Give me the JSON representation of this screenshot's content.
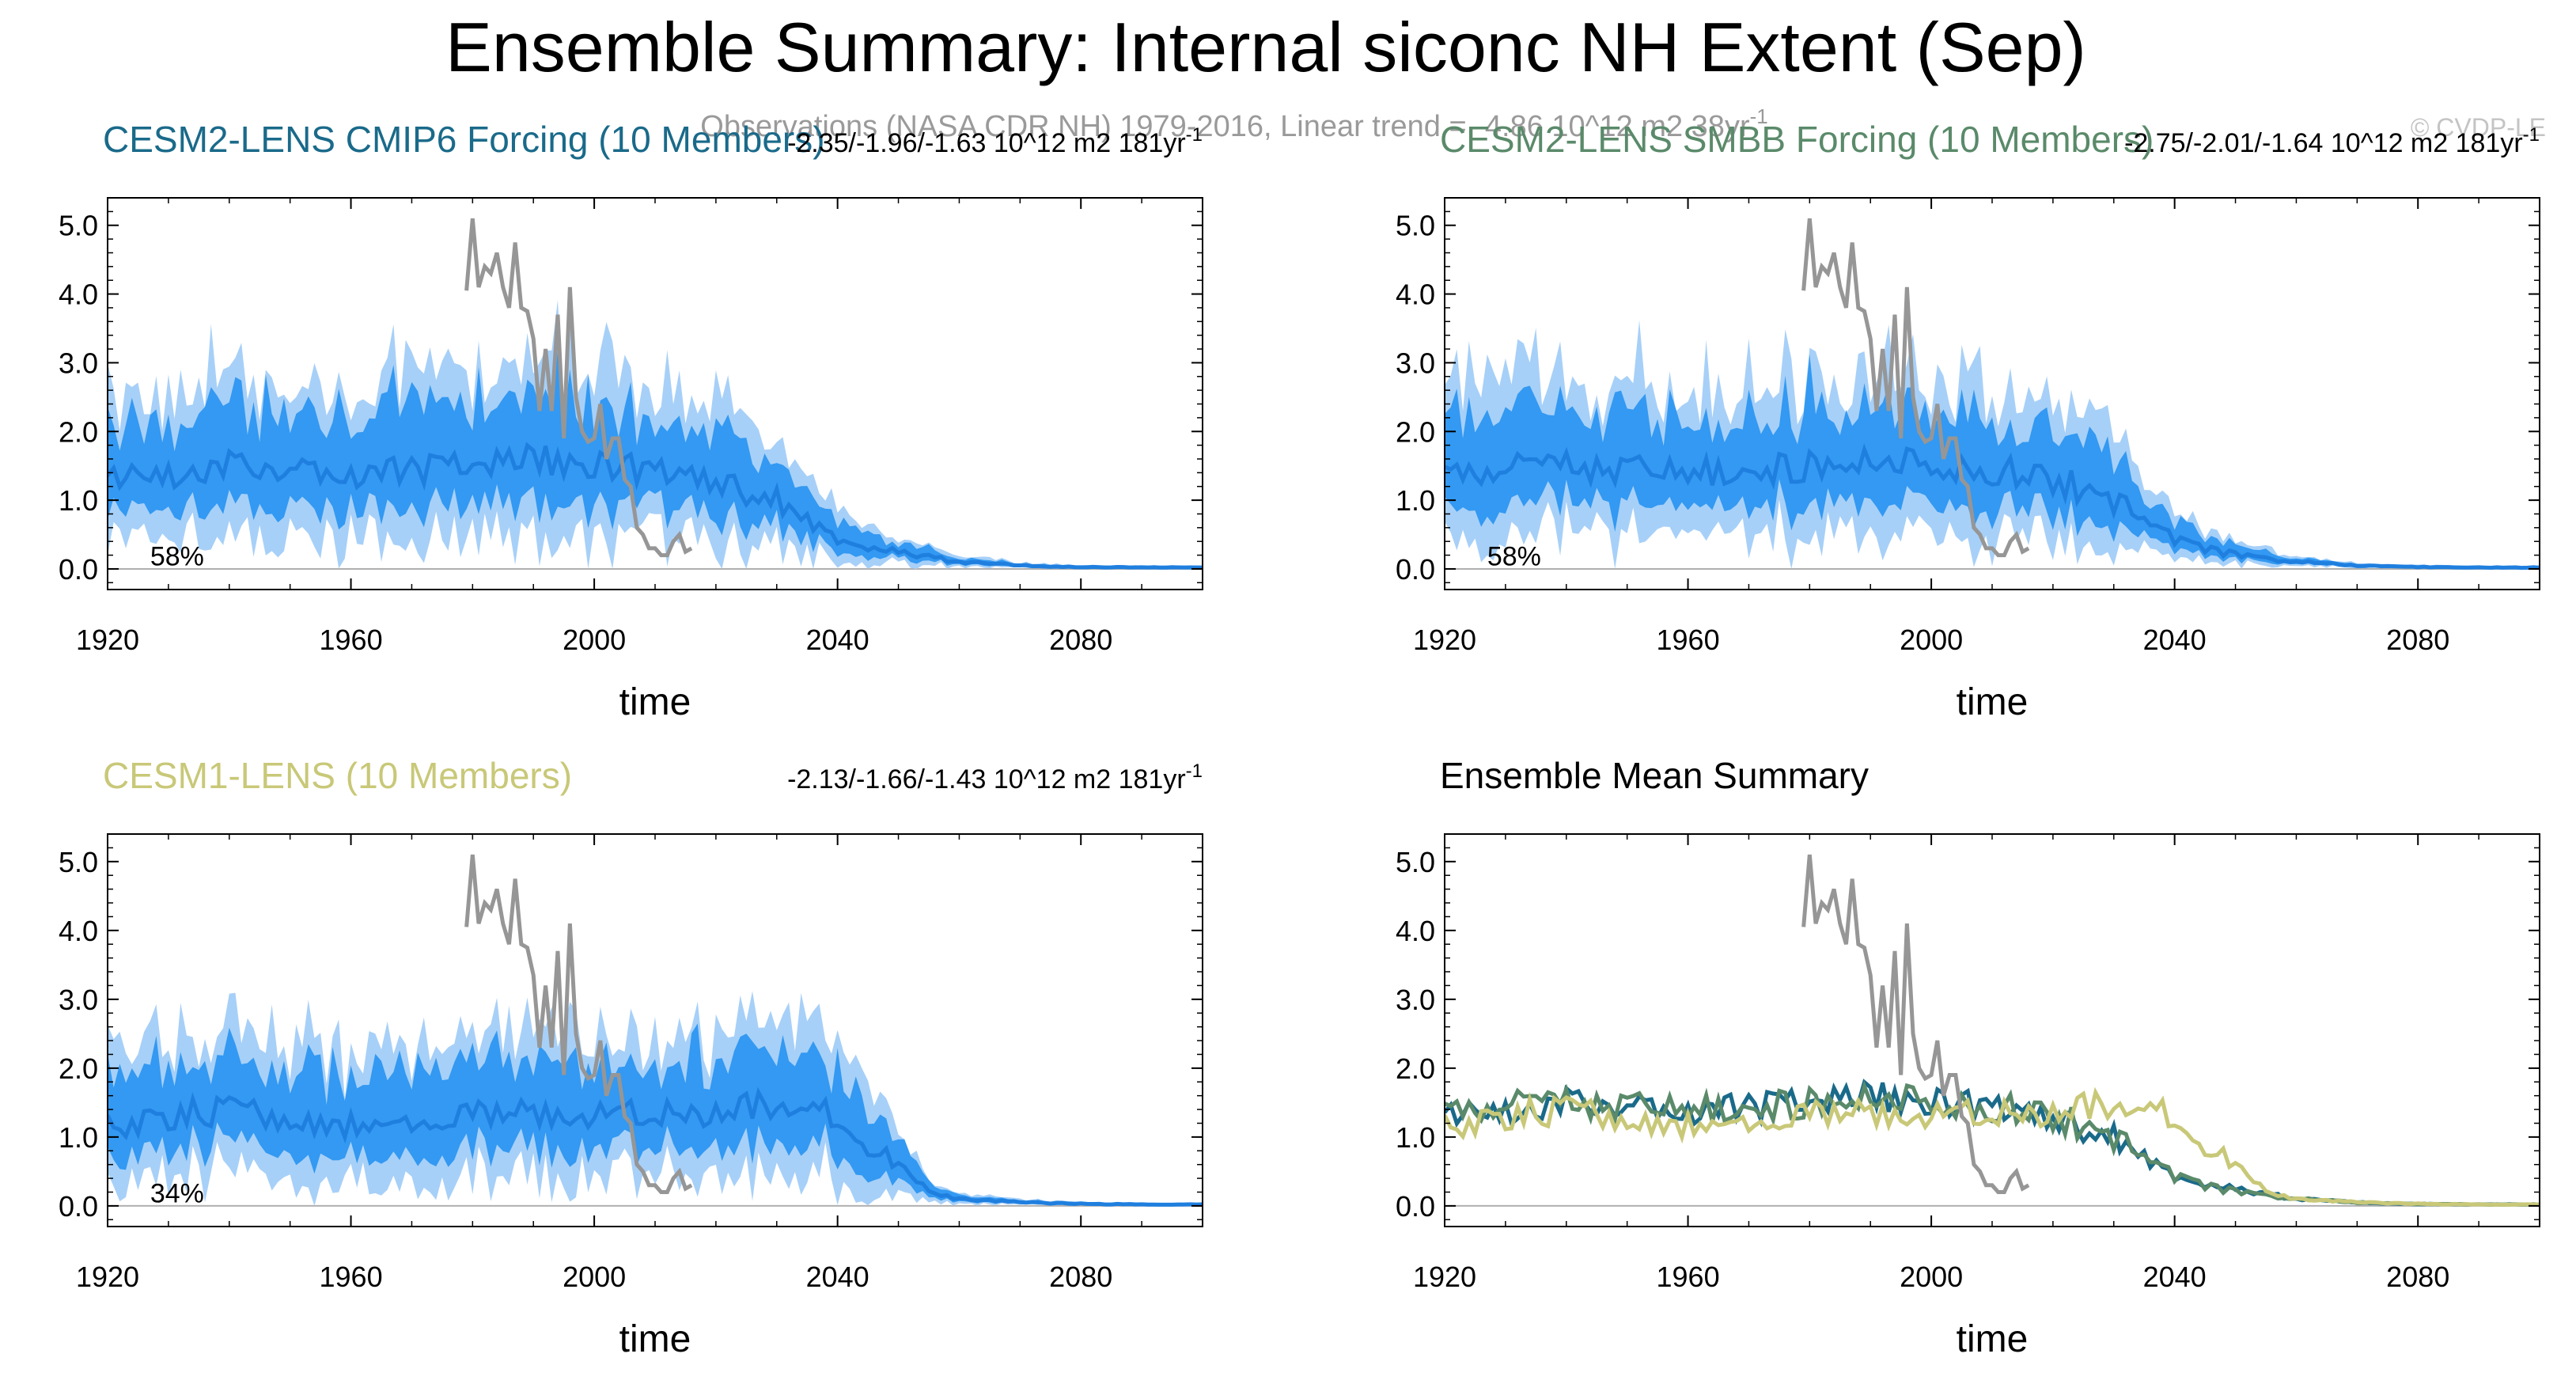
{
  "title": "Ensemble Summary: Internal siconc NH Extent (Sep)",
  "observations_label": "Observations (NASA CDR NH) 1979-2016, Linear trend = -4.86 10^12 m2 38yr",
  "observations_label_superscript": "-1",
  "watermark": "© CVDP-LE",
  "colors": {
    "cesm2_cmip6": "#1a6a8a",
    "cesm2_smbb": "#5a8a6a",
    "cesm1": "#c8c878",
    "observations": "#969696",
    "band_outer": "#a7d0f8",
    "band_inner": "#3399f2",
    "ensemble_mean_line": "#1f7fdf"
  },
  "chart_data": [
    {
      "type": "area",
      "id": "cesm2-cmip6",
      "title": "CESM2-LENS CMIP6 Forcing (10 Members)",
      "trend_text": "-2.35/-1.96/-1.63 10^12 m2 181yr",
      "trend_superscript": "-1",
      "percent_label": "58%",
      "xlabel": "time",
      "ylabel": "",
      "xlim": [
        1920,
        2100
      ],
      "ylim": [
        -0.3,
        5.4
      ],
      "xticks": [
        "1920",
        "1960",
        "2000",
        "2040",
        "2080"
      ],
      "yticks": [
        "0.0",
        "1.0",
        "2.0",
        "3.0",
        "4.0",
        "5.0"
      ],
      "ensemble_mean_anchors": {
        "x": [
          1920,
          1930,
          1940,
          1950,
          1960,
          1970,
          1980,
          1990,
          2000,
          2010,
          2020,
          2030,
          2040,
          2050,
          2060,
          2070,
          2080,
          2090,
          2100
        ],
        "y": [
          1.3,
          1.4,
          1.5,
          1.5,
          1.4,
          1.45,
          1.5,
          1.6,
          1.55,
          1.4,
          1.3,
          1.0,
          0.4,
          0.25,
          0.1,
          0.05,
          0.03,
          0.02,
          0.02
        ]
      }
    },
    {
      "type": "area",
      "id": "cesm2-smbb",
      "title": "CESM2-LENS SMBB Forcing (10 Members)",
      "trend_text": "-2.75/-2.01/-1.64 10^12 m2 181yr",
      "trend_superscript": "-1",
      "percent_label": "58%",
      "xlabel": "time",
      "ylabel": "",
      "xlim": [
        1920,
        2100
      ],
      "ylim": [
        -0.3,
        5.4
      ],
      "xticks": [
        "1920",
        "1960",
        "2000",
        "2040",
        "2080"
      ],
      "yticks": [
        "0.0",
        "1.0",
        "2.0",
        "3.0",
        "4.0",
        "5.0"
      ],
      "ensemble_mean_anchors": {
        "x": [
          1920,
          1930,
          1940,
          1950,
          1960,
          1970,
          1980,
          1990,
          2000,
          2010,
          2020,
          2030,
          2040,
          2050,
          2060,
          2070,
          2080,
          2090,
          2100
        ],
        "y": [
          1.4,
          1.45,
          1.5,
          1.45,
          1.4,
          1.45,
          1.5,
          1.6,
          1.5,
          1.45,
          1.3,
          1.0,
          0.4,
          0.2,
          0.1,
          0.05,
          0.03,
          0.02,
          0.02
        ]
      }
    },
    {
      "type": "area",
      "id": "cesm1",
      "title": "CESM1-LENS (10 Members)",
      "trend_text": "-2.13/-1.66/-1.43 10^12 m2 181yr",
      "trend_superscript": "-1",
      "percent_label": "34%",
      "xlabel": "time",
      "ylabel": "",
      "xlim": [
        1920,
        2100
      ],
      "ylim": [
        -0.3,
        5.4
      ],
      "xticks": [
        "1920",
        "1960",
        "2000",
        "2040",
        "2080"
      ],
      "yticks": [
        "0.0",
        "1.0",
        "2.0",
        "3.0",
        "4.0",
        "5.0"
      ],
      "ensemble_mean_anchors": {
        "x": [
          1920,
          1930,
          1940,
          1950,
          1960,
          1970,
          1980,
          1990,
          2000,
          2010,
          2020,
          2030,
          2040,
          2050,
          2055,
          2060,
          2070,
          2080,
          2090,
          2100
        ],
        "y": [
          1.2,
          1.3,
          1.4,
          1.3,
          1.2,
          1.3,
          1.35,
          1.3,
          1.3,
          1.3,
          1.4,
          1.5,
          1.3,
          0.6,
          0.2,
          0.1,
          0.05,
          0.03,
          0.02,
          0.02
        ]
      }
    },
    {
      "type": "line",
      "id": "ensemble-mean-summary",
      "title": "Ensemble Mean Summary",
      "xlabel": "time",
      "ylabel": "",
      "xlim": [
        1920,
        2100
      ],
      "ylim": [
        -0.3,
        5.4
      ],
      "xticks": [
        "1920",
        "1960",
        "2000",
        "2040",
        "2080"
      ],
      "yticks": [
        "0.0",
        "1.0",
        "2.0",
        "3.0",
        "4.0",
        "5.0"
      ],
      "series": [
        {
          "name": "CESM2-LENS CMIP6 Forcing",
          "color": "#1a6a8a",
          "from": "cesm2-cmip6"
        },
        {
          "name": "CESM2-LENS SMBB Forcing",
          "color": "#5a8a6a",
          "from": "cesm2-smbb"
        },
        {
          "name": "CESM1-LENS",
          "color": "#c8c878",
          "from": "cesm1"
        }
      ]
    }
  ],
  "observations": {
    "name": "Observations (NASA CDR NH)",
    "x": [
      1979,
      1980,
      1981,
      1982,
      1983,
      1984,
      1985,
      1986,
      1987,
      1988,
      1989,
      1990,
      1991,
      1992,
      1993,
      1994,
      1995,
      1996,
      1997,
      1998,
      1999,
      2000,
      2001,
      2002,
      2003,
      2004,
      2005,
      2006,
      2007,
      2008,
      2009,
      2010,
      2011,
      2012,
      2013,
      2014,
      2015,
      2016
    ],
    "y": [
      4.05,
      5.1,
      4.1,
      4.4,
      4.3,
      4.6,
      4.1,
      3.8,
      4.75,
      3.8,
      3.75,
      3.35,
      2.3,
      3.2,
      2.3,
      3.7,
      1.9,
      4.1,
      2.5,
      2.0,
      1.85,
      1.9,
      2.4,
      1.6,
      1.9,
      1.9,
      1.3,
      1.2,
      0.6,
      0.5,
      0.3,
      0.3,
      0.2,
      0.2,
      0.4,
      0.5,
      0.25,
      0.3
    ]
  }
}
